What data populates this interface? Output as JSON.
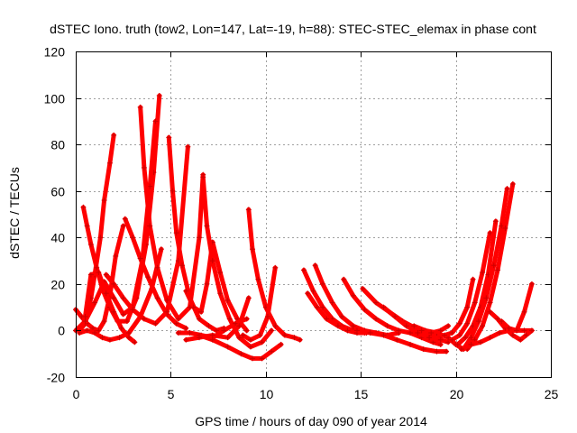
{
  "chart_data": {
    "type": "line",
    "title": "dSTEC Iono. truth (tow2, Lon=147, Lat=-19, h=88): STEC-STEC_elemax in phase cont",
    "xlabel": "GPS time / hours of day 090 of year 2014",
    "ylabel": "dSTEC  / TECUs",
    "xlim": [
      0,
      25
    ],
    "ylim": [
      -20,
      120
    ],
    "xticks": [
      0,
      5,
      10,
      15,
      20,
      25
    ],
    "yticks": [
      -20,
      0,
      20,
      40,
      60,
      80,
      100,
      120
    ],
    "grid": true,
    "legend": "none",
    "colors": {
      "series": "#ff0000",
      "marker": "#cc0000",
      "grid": "#a0a0a0"
    },
    "series": [
      {
        "x": [
          0.0,
          0.3,
          0.6,
          0.9,
          1.2,
          1.5,
          1.8,
          2.1,
          2.5
        ],
        "y": [
          9,
          6,
          3,
          1,
          0,
          4,
          15,
          32,
          45
        ]
      },
      {
        "x": [
          0.2,
          0.5,
          0.8,
          1.0,
          1.3,
          1.5,
          1.8,
          2.0
        ],
        "y": [
          0,
          3,
          14,
          24,
          40,
          56,
          72,
          84
        ]
      },
      {
        "x": [
          0.4,
          0.6,
          0.8,
          1.1,
          1.4,
          1.8,
          2.2,
          2.7,
          3.2,
          3.7,
          4.1,
          4.4
        ],
        "y": [
          53,
          45,
          37,
          27,
          18,
          10,
          4,
          4,
          14,
          37,
          68,
          101
        ]
      },
      {
        "x": [
          0.0,
          0.5,
          1.0,
          1.5,
          2.0,
          2.5,
          3.0,
          3.5,
          3.9,
          4.2
        ],
        "y": [
          0,
          4,
          12,
          21,
          14,
          7,
          10,
          30,
          62,
          90
        ]
      },
      {
        "x": [
          0.5,
          0.8,
          1.2,
          1.6,
          2.0,
          2.4,
          2.8,
          3.1
        ],
        "y": [
          6,
          24,
          25,
          16,
          8,
          1,
          -3,
          -5
        ]
      },
      {
        "x": [
          0.2,
          0.6,
          1.0,
          1.4,
          1.8,
          2.3,
          2.8,
          3.4,
          4.0,
          4.5
        ],
        "y": [
          -1,
          0,
          -1,
          -3,
          -4,
          -3,
          -1,
          6,
          18,
          35
        ]
      },
      {
        "x": [
          2.6,
          3.0,
          3.4,
          3.8,
          4.3,
          4.8,
          5.3,
          5.8
        ],
        "y": [
          48,
          40,
          31,
          23,
          14,
          7,
          3,
          1
        ]
      },
      {
        "x": [
          1.6,
          2.0,
          2.5,
          3.0,
          3.6,
          4.2,
          4.8,
          5.4,
          5.9
        ],
        "y": [
          24,
          20,
          14,
          9,
          5,
          3,
          8,
          30,
          79
        ]
      },
      {
        "x": [
          3.4,
          3.6,
          3.9,
          4.3,
          4.8,
          5.4,
          6.0,
          6.5,
          6.7
        ],
        "y": [
          96,
          70,
          45,
          27,
          13,
          5,
          10,
          40,
          67
        ]
      },
      {
        "x": [
          4.9,
          5.1,
          5.3,
          5.6,
          6.0,
          6.5,
          7.0,
          7.4,
          7.8
        ],
        "y": [
          83,
          60,
          42,
          28,
          14,
          5,
          2,
          0,
          1
        ]
      },
      {
        "x": [
          5.8,
          6.2,
          6.6,
          6.9,
          7.2,
          7.6,
          8.0,
          8.5,
          9.0
        ],
        "y": [
          17,
          10,
          8,
          20,
          38,
          25,
          13,
          5,
          0
        ]
      },
      {
        "x": [
          6.7,
          6.9,
          7.2,
          7.6,
          8.1,
          8.6,
          9.2,
          9.8,
          10.3
        ],
        "y": [
          66,
          45,
          30,
          16,
          5,
          -3,
          -7,
          -5,
          0
        ]
      },
      {
        "x": [
          5.4,
          6.0,
          6.6,
          7.2,
          7.8,
          8.4,
          9.0
        ],
        "y": [
          -1,
          -1,
          -2,
          -3,
          0,
          3,
          5
        ]
      },
      {
        "x": [
          6.5,
          7.2,
          8.0,
          8.7,
          9.3,
          9.8,
          10.3,
          10.8
        ],
        "y": [
          -2,
          -4,
          -7,
          -10,
          -12,
          -12,
          -9,
          -6
        ]
      },
      {
        "x": [
          5.8,
          6.5,
          7.2,
          8.0,
          8.6,
          9.1
        ],
        "y": [
          -4,
          -3,
          -2,
          -3,
          2,
          14
        ]
      },
      {
        "x": [
          9.1,
          9.3,
          9.6,
          10.0,
          10.5,
          11.0,
          11.5,
          11.8
        ],
        "y": [
          52,
          35,
          22,
          10,
          2,
          -2,
          -3,
          -4
        ]
      },
      {
        "x": [
          8.8,
          9.2,
          9.7,
          10.1,
          10.5
        ],
        "y": [
          -2,
          -4,
          -2,
          6,
          27
        ]
      },
      {
        "x": [
          12.0,
          12.5,
          13.0,
          13.5,
          14.0,
          14.6,
          15.2
        ],
        "y": [
          26,
          17,
          10,
          5,
          2,
          0,
          -1
        ]
      },
      {
        "x": [
          12.2,
          12.7,
          13.2,
          13.8,
          14.3,
          14.8,
          15.3
        ],
        "y": [
          16,
          10,
          5,
          2,
          0,
          -1,
          -1
        ]
      },
      {
        "x": [
          12.6,
          13.0,
          13.5,
          14.0,
          14.6,
          15.2,
          15.8,
          16.4,
          17.0
        ],
        "y": [
          28,
          20,
          12,
          6,
          2,
          0,
          -1,
          -2,
          -1
        ]
      },
      {
        "x": [
          14.1,
          14.6,
          15.2,
          15.8,
          16.4,
          17.0,
          17.6,
          18.2,
          18.8,
          19.2
        ],
        "y": [
          22,
          15,
          9,
          5,
          2,
          0,
          -1,
          -3,
          -5,
          -6
        ]
      },
      {
        "x": [
          15.1,
          15.8,
          16.5,
          17.2,
          17.9,
          18.6,
          19.2
        ],
        "y": [
          18,
          12,
          8,
          4,
          1,
          -2,
          -3
        ]
      },
      {
        "x": [
          14.8,
          15.5,
          16.2,
          16.9,
          17.6,
          18.3,
          19.0,
          19.5
        ],
        "y": [
          0,
          -1,
          -2,
          -4,
          -6,
          -8,
          -9,
          -9
        ]
      },
      {
        "x": [
          16.2,
          16.8,
          17.4,
          18.0,
          18.6,
          19.2,
          19.6
        ],
        "y": [
          10,
          6,
          2,
          -1,
          -3,
          -4,
          -5
        ]
      },
      {
        "x": [
          17.8,
          18.4,
          19.0,
          19.6,
          20.0,
          20.4
        ],
        "y": [
          2,
          0,
          -1,
          -3,
          -6,
          -8
        ]
      },
      {
        "x": [
          18.2,
          18.7,
          19.2,
          19.6
        ],
        "y": [
          0,
          -1,
          0,
          2
        ]
      },
      {
        "x": [
          19.4,
          19.8,
          20.2,
          20.6,
          20.9
        ],
        "y": [
          -2,
          -1,
          3,
          10,
          22
        ]
      },
      {
        "x": [
          19.8,
          20.2,
          20.6,
          21.0,
          21.4,
          21.8
        ],
        "y": [
          -4,
          -2,
          3,
          12,
          25,
          42
        ]
      },
      {
        "x": [
          20.1,
          20.5,
          20.9,
          21.3,
          21.7,
          22.1
        ],
        "y": [
          -6,
          -3,
          2,
          10,
          24,
          47
        ]
      },
      {
        "x": [
          20.4,
          20.8,
          21.2,
          21.6,
          22.0,
          22.4,
          22.7
        ],
        "y": [
          -8,
          -3,
          4,
          14,
          28,
          45,
          61
        ]
      },
      {
        "x": [
          20.6,
          21.0,
          21.4,
          21.8,
          22.2,
          22.6,
          23.0
        ],
        "y": [
          -8,
          -4,
          2,
          12,
          26,
          44,
          63
        ]
      },
      {
        "x": [
          20.3,
          20.8,
          21.3,
          21.8,
          22.3,
          22.8,
          23.2,
          23.6,
          24.0
        ],
        "y": [
          -8,
          -6,
          -5,
          -3,
          -1,
          0,
          0,
          0,
          0
        ]
      },
      {
        "x": [
          21.8,
          22.2,
          22.6,
          23.0,
          23.4,
          23.7,
          24.0
        ],
        "y": [
          8,
          5,
          1,
          -2,
          -4,
          -2,
          0
        ]
      },
      {
        "x": [
          22.4,
          22.8,
          23.2,
          23.6,
          24.0
        ],
        "y": [
          4,
          1,
          0,
          8,
          20
        ]
      }
    ]
  }
}
